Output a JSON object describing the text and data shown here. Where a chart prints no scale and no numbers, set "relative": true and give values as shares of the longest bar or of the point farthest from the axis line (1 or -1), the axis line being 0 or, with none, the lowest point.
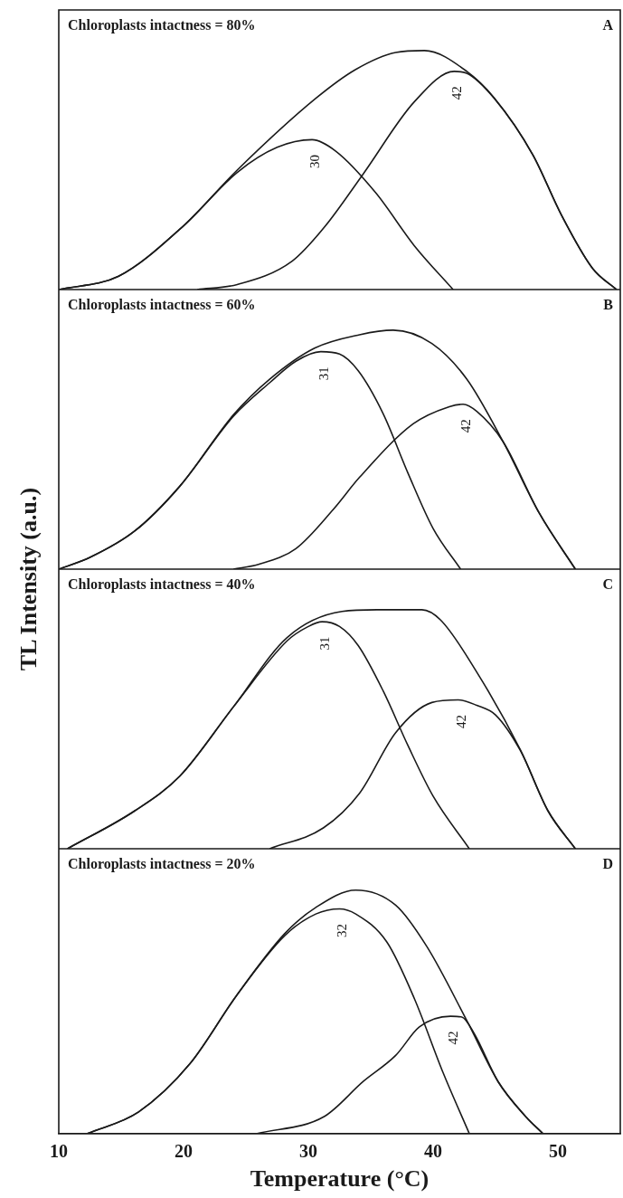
{
  "chart_data": [
    {
      "type": "line",
      "title": "Chloroplasts intactness = 80%",
      "relative": true,
      "xlim": [
        10,
        55
      ],
      "xticks": [
        10,
        20,
        30,
        40,
        50
      ],
      "tick_labels": false,
      "grid": false,
      "legend": false,
      "marker": "none",
      "line_style": "solid",
      "annotations": [
        "A"
      ],
      "series": [
        {
          "color": "#1a1a1a",
          "x": [
            10,
            14.8,
            19.9,
            24.3,
            30.6,
            33.8,
            37,
            39.3,
            42.7,
            44.9,
            48,
            50.3,
            52.8,
            54.7
          ],
          "values": [
            0,
            0.056,
            0.262,
            0.5,
            0.8,
            0.921,
            0.992,
            1,
            0.913,
            0.802,
            0.563,
            0.31,
            0.087,
            0
          ]
        },
        {
          "name": "30",
          "color": "#1a1a1a",
          "x": [
            10,
            14.8,
            19.9,
            24.3,
            27.5,
            30.3,
            32.2,
            35.4,
            38.5,
            41.6
          ],
          "values": [
            0,
            0.056,
            0.262,
            0.49,
            0.595,
            0.627,
            0.579,
            0.405,
            0.183,
            0
          ]
        },
        {
          "name": "42",
          "color": "#1a1a1a",
          "x": [
            21.1,
            24.3,
            28.7,
            31.3,
            34.4,
            38.5,
            41.7,
            42.7,
            44.9,
            48,
            50.3,
            52.8,
            54.7
          ],
          "values": [
            0,
            0.021,
            0.119,
            0.262,
            0.484,
            0.786,
            0.913,
            0.905,
            0.8,
            0.563,
            0.31,
            0.087,
            0
          ]
        }
      ]
    },
    {
      "type": "line",
      "title": "Chloroplasts intactness = 60%",
      "relative": true,
      "xlim": [
        10,
        55
      ],
      "xticks": [
        10,
        20,
        30,
        40,
        50
      ],
      "tick_labels": false,
      "grid": false,
      "legend": false,
      "marker": "none",
      "line_style": "solid",
      "annotations": [
        "B"
      ],
      "series": [
        {
          "color": "#1a1a1a",
          "x": [
            10,
            12.5,
            16.1,
            19.7,
            24,
            26.9,
            30.5,
            34.1,
            36.8,
            39.9,
            42.7,
            45.6,
            48.5,
            51.4
          ],
          "values": [
            0,
            0.049,
            0.16,
            0.347,
            0.646,
            0.795,
            0.925,
            0.981,
            1,
            0.944,
            0.795,
            0.534,
            0.235,
            0
          ]
        },
        {
          "name": "31",
          "color": "#1a1a1a",
          "x": [
            10,
            12.5,
            16.1,
            19.7,
            24,
            26.9,
            29,
            31,
            32.5,
            34,
            36,
            38,
            40,
            42.2
          ],
          "values": [
            0,
            0.049,
            0.16,
            0.347,
            0.64,
            0.78,
            0.87,
            0.91,
            0.9,
            0.83,
            0.65,
            0.4,
            0.17,
            0
          ]
        },
        {
          "name": "42",
          "color": "#1a1a1a",
          "x": [
            24,
            26,
            29,
            32,
            34.1,
            38.4,
            41.3,
            42.4,
            43.5,
            45.6,
            48.5,
            51.4
          ],
          "values": [
            0,
            0.02,
            0.086,
            0.25,
            0.384,
            0.608,
            0.68,
            0.69,
            0.66,
            0.534,
            0.235,
            0
          ]
        }
      ]
    },
    {
      "type": "line",
      "title": "Chloroplasts intactness = 40%",
      "ylabel": "TL Intensity (a.u.)",
      "relative": true,
      "xlim": [
        10,
        55
      ],
      "xticks": [
        10,
        20,
        30,
        40,
        50
      ],
      "tick_labels": false,
      "grid": false,
      "legend": false,
      "marker": "none",
      "line_style": "solid",
      "annotations": [
        "C"
      ],
      "series": [
        {
          "color": "#1a1a1a",
          "x": [
            10.7,
            16.1,
            19.7,
            24,
            28.3,
            32.7,
            35.5,
            39.1,
            40.6,
            43.5,
            47,
            49.2,
            51.4
          ],
          "values": [
            0,
            0.159,
            0.304,
            0.594,
            0.884,
            0.993,
            1,
            1,
            0.957,
            0.739,
            0.413,
            0.159,
            0
          ]
        },
        {
          "name": "31",
          "color": "#1a1a1a",
          "x": [
            10.7,
            16.1,
            19.7,
            24,
            28.3,
            30,
            31.1,
            32.5,
            34,
            36,
            38,
            40,
            42.9
          ],
          "values": [
            0,
            0.159,
            0.304,
            0.594,
            0.87,
            0.93,
            0.95,
            0.93,
            0.85,
            0.66,
            0.43,
            0.22,
            0
          ]
        },
        {
          "name": "42",
          "color": "#1a1a1a",
          "x": [
            26.9,
            31.2,
            34.1,
            37,
            39.9,
            42,
            43.5,
            45,
            47,
            49.2,
            51.4
          ],
          "values": [
            0,
            0.087,
            0.232,
            0.486,
            0.612,
            0.623,
            0.6,
            0.56,
            0.41,
            0.159,
            0
          ]
        }
      ]
    },
    {
      "type": "line",
      "title": "Chloroplasts intactness = 20%",
      "xlabel": "Temperature (°C)",
      "relative": true,
      "xlim": [
        10,
        55
      ],
      "xticks": [
        10,
        20,
        30,
        40,
        50
      ],
      "tick_labels": "x",
      "grid": false,
      "legend": false,
      "marker": "none",
      "line_style": "solid",
      "annotations": [
        "D"
      ],
      "series": [
        {
          "color": "#1a1a1a",
          "x": [
            12.3,
            16.4,
            20.5,
            24.3,
            28.1,
            30.6,
            33.8,
            37,
            39.5,
            42.7,
            45.2,
            47.4,
            48.8
          ],
          "values": [
            0,
            0.089,
            0.286,
            0.571,
            0.821,
            0.929,
            1,
            0.938,
            0.768,
            0.464,
            0.214,
            0.071,
            0
          ]
        },
        {
          "name": "32",
          "color": "#1a1a1a",
          "x": [
            12.3,
            16.4,
            20.5,
            24.3,
            28.1,
            30.6,
            32.5,
            33.8,
            36.3,
            38.5,
            40.8,
            42.9
          ],
          "values": [
            0,
            0.089,
            0.286,
            0.571,
            0.813,
            0.902,
            0.923,
            0.902,
            0.786,
            0.554,
            0.25,
            0
          ]
        },
        {
          "name": "42",
          "color": "#1a1a1a",
          "x": [
            25.9,
            31.3,
            34.4,
            37,
            38.9,
            41.4,
            42.3,
            43.3,
            45.2,
            47.4,
            48.8
          ],
          "values": [
            0,
            0.071,
            0.214,
            0.321,
            0.438,
            0.482,
            0.479,
            0.41,
            0.214,
            0.071,
            0
          ]
        }
      ]
    }
  ]
}
